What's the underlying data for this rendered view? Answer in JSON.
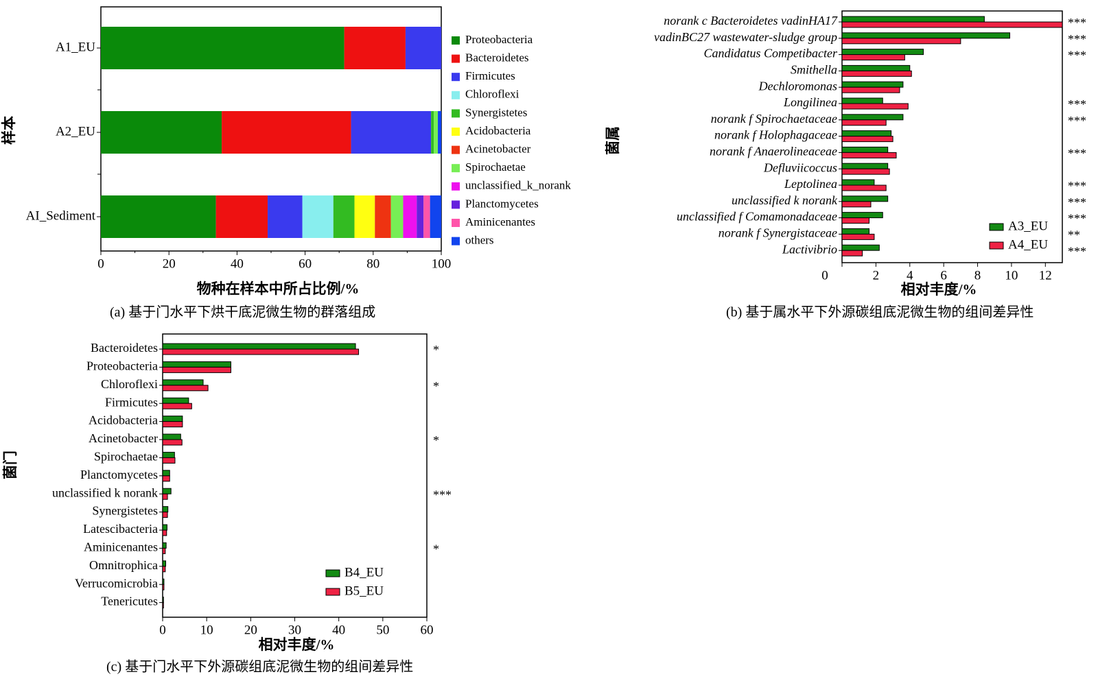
{
  "chart_data": [
    {
      "panel": "a",
      "type": "bar",
      "orientation": "horizontal",
      "stacked": true,
      "caption": "(a)  基于门水平下烘干底泥微生物的群落组成",
      "xlabel": "物种在样本中所占比例/%",
      "ylabel": "样本",
      "xlim": [
        0,
        100
      ],
      "xticks": [
        "0",
        "20",
        "40",
        "60",
        "80",
        "100"
      ],
      "categories": [
        "A1_EU",
        "A2_EU",
        "AI_Sediment"
      ],
      "series": [
        {
          "name": "Proteobacteria",
          "color": "#0a8a0a",
          "values": [
            71.5,
            35.5,
            33.8
          ]
        },
        {
          "name": "Bacteroidetes",
          "color": "#ee1111",
          "values": [
            18.0,
            38.0,
            15.2
          ]
        },
        {
          "name": "Firmicutes",
          "color": "#3a3aee",
          "values": [
            10.5,
            23.5,
            10.2
          ]
        },
        {
          "name": "Chloroflexi",
          "color": "#88eeee",
          "values": [
            0,
            0,
            9.1
          ]
        },
        {
          "name": "Synergistetes",
          "color": "#33bb22",
          "values": [
            0,
            0.8,
            6.2
          ]
        },
        {
          "name": "Acidobacteria",
          "color": "#ffff11",
          "values": [
            0,
            0,
            6.0
          ]
        },
        {
          "name": "Acinetobacter",
          "color": "#ee3311",
          "values": [
            0,
            0,
            4.7
          ]
        },
        {
          "name": "Spirochaetae",
          "color": "#77ee55",
          "values": [
            0,
            1.2,
            3.6
          ]
        },
        {
          "name": "unclassified_k_norank",
          "color": "#ee11ee",
          "values": [
            0,
            0,
            4.0
          ]
        },
        {
          "name": "Planctomycetes",
          "color": "#6622dd",
          "values": [
            0,
            0,
            2.0
          ]
        },
        {
          "name": "Aminicenantes",
          "color": "#ff55aa",
          "values": [
            0,
            0,
            1.9
          ]
        },
        {
          "name": "others",
          "color": "#1144ee",
          "values": [
            0,
            1.0,
            3.3
          ]
        }
      ]
    },
    {
      "panel": "b",
      "type": "bar",
      "orientation": "horizontal",
      "caption": "(b)  基于属水平下外源碳组底泥微生物的组间差异性",
      "xlabel": "相对丰度/%",
      "ylabel": "菌属",
      "xlim": [
        0,
        13
      ],
      "xticks": [
        "0",
        "2",
        "4",
        "6",
        "8",
        "10",
        "12"
      ],
      "categories": [
        "norank_c_Bacteroidetes_vadinHA17",
        "vadinBC27_wastewater-sludge_group",
        "Candidatus_Competibacter",
        "Smithella",
        "Dechloromonas",
        "Longilinea",
        "norank_f_Spirochaetaceae",
        "norank_f_Holophagaceae",
        "norank_f_Anaerolineaceae",
        "Defluviicoccus",
        "Leptolinea",
        "unclassified_k_norank",
        "unclassified_f_Comamonadaceae",
        "norank_f_Synergistaceae",
        "Lactivibrio"
      ],
      "significance": [
        "***",
        "***",
        "***",
        "",
        "",
        "***",
        "***",
        "",
        "***",
        "",
        "***",
        "***",
        "***",
        "**",
        "***"
      ],
      "series": [
        {
          "name": "A3_EU",
          "color": "#138a13",
          "values": [
            8.4,
            9.9,
            4.8,
            4.0,
            3.6,
            2.4,
            3.6,
            2.9,
            2.7,
            2.7,
            1.9,
            2.7,
            2.4,
            1.6,
            2.2
          ]
        },
        {
          "name": "A4_EU",
          "color": "#ee2244",
          "values": [
            13.0,
            7.0,
            3.7,
            4.1,
            3.4,
            3.9,
            2.6,
            3.0,
            3.2,
            2.8,
            2.6,
            1.7,
            1.6,
            1.9,
            1.2
          ]
        }
      ]
    },
    {
      "panel": "c",
      "type": "bar",
      "orientation": "horizontal",
      "caption": "(c)  基于门水平下外源碳组底泥微生物的组间差异性",
      "xlabel": "相对丰度/%",
      "ylabel": "菌门",
      "xlim": [
        0,
        60
      ],
      "xticks": [
        "0",
        "10",
        "20",
        "30",
        "40",
        "50",
        "60"
      ],
      "categories": [
        "Bacteroidetes",
        "Proteobacteria",
        "Chloroflexi",
        "Firmicutes",
        "Acidobacteria",
        "Acinetobacter",
        "Spirochaetae",
        "Planctomycetes",
        "unclassified_k_norank",
        "Synergistetes",
        "Latescibacteria",
        "Aminicenantes",
        "Omnitrophica",
        "Verrucomicrobia",
        "Tenericutes"
      ],
      "significance": [
        "*",
        "",
        "*",
        "",
        "",
        "*",
        "",
        "",
        "***",
        "",
        "",
        "*",
        "",
        "",
        ""
      ],
      "series": [
        {
          "name": "B4_EU",
          "color": "#138a13",
          "values": [
            43.8,
            15.5,
            9.2,
            5.9,
            4.5,
            4.1,
            2.7,
            1.6,
            1.9,
            1.2,
            1.0,
            0.8,
            0.7,
            0.3,
            0.2
          ]
        },
        {
          "name": "B5_EU",
          "color": "#ee2244",
          "values": [
            44.5,
            15.5,
            10.3,
            6.6,
            4.5,
            4.4,
            2.8,
            1.6,
            1.1,
            1.1,
            0.9,
            0.6,
            0.6,
            0.3,
            0.2
          ]
        }
      ]
    }
  ]
}
